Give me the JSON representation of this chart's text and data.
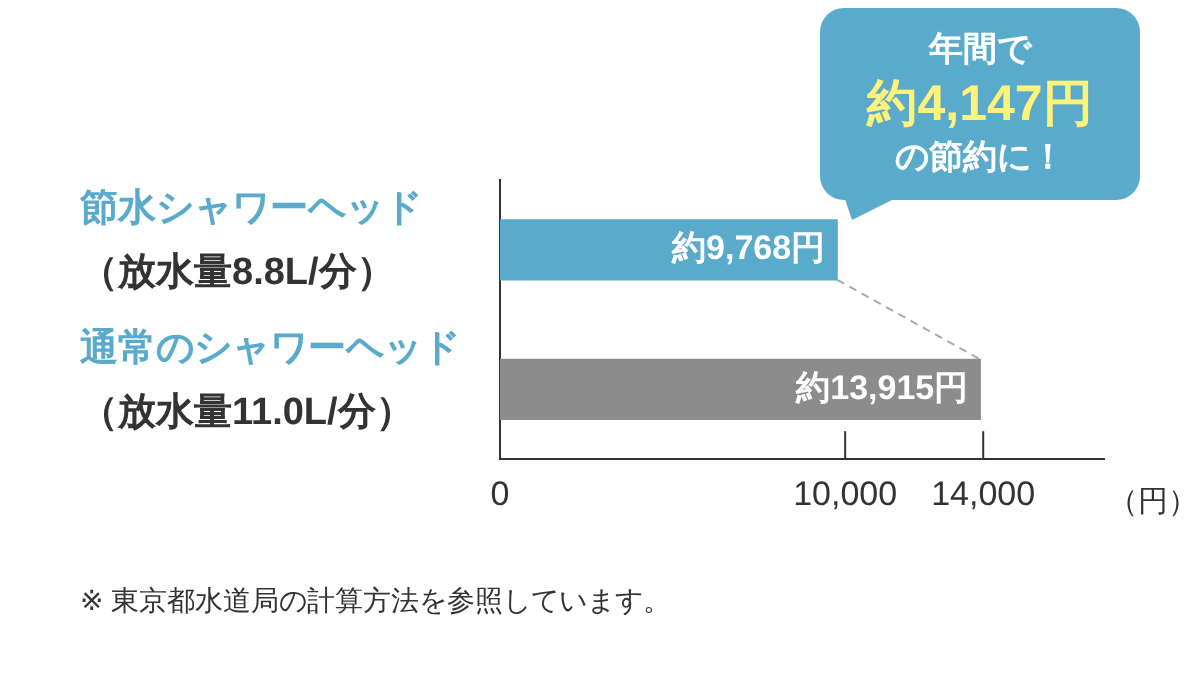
{
  "chart_data": {
    "type": "bar",
    "orientation": "horizontal",
    "categories": [
      "節水シャワーヘッド（放水量8.8L/分）",
      "通常のシャワーヘッド（放水量11.0L/分）"
    ],
    "values": [
      9768,
      13915
    ],
    "colors": [
      "#5aabcb",
      "#8c8c8c"
    ],
    "value_labels": [
      "約9,768円",
      "約13,915円"
    ],
    "xlim": [
      0,
      17500
    ],
    "xticks": [
      0,
      {
        "value": 10000,
        "label": "10,000"
      },
      {
        "value": 14000,
        "label": "14,000"
      }
    ],
    "xlabel": "（円）",
    "grid": false,
    "legend": false,
    "annotations": [
      "年間で",
      "約4,147円",
      "の節約に！",
      "※ 東京都水道局の計算方法を参照しています。"
    ]
  }
}
